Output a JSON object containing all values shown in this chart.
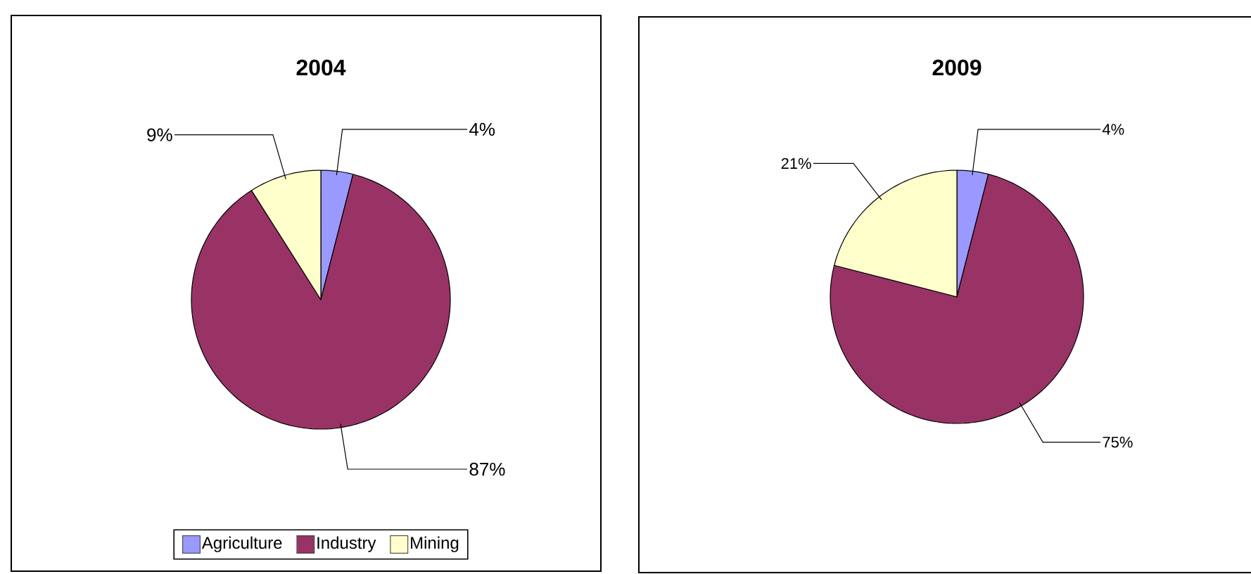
{
  "chart_data": [
    {
      "type": "pie",
      "title": "2004",
      "categories": [
        "Agriculture",
        "Industry",
        "Mining"
      ],
      "values": [
        4,
        87,
        9
      ],
      "colors": [
        "#9999ff",
        "#993366",
        "#ffffcc"
      ],
      "value_labels": [
        "4%",
        "87%",
        "9%"
      ],
      "legend": "bottom"
    },
    {
      "type": "pie",
      "title": "2009",
      "categories": [
        null,
        null,
        null
      ],
      "values": [
        4,
        75,
        21
      ],
      "colors": [
        "#9999ff",
        "#993366",
        "#ffffcc"
      ],
      "value_labels": [
        "4%",
        "75%",
        "21%"
      ]
    }
  ]
}
